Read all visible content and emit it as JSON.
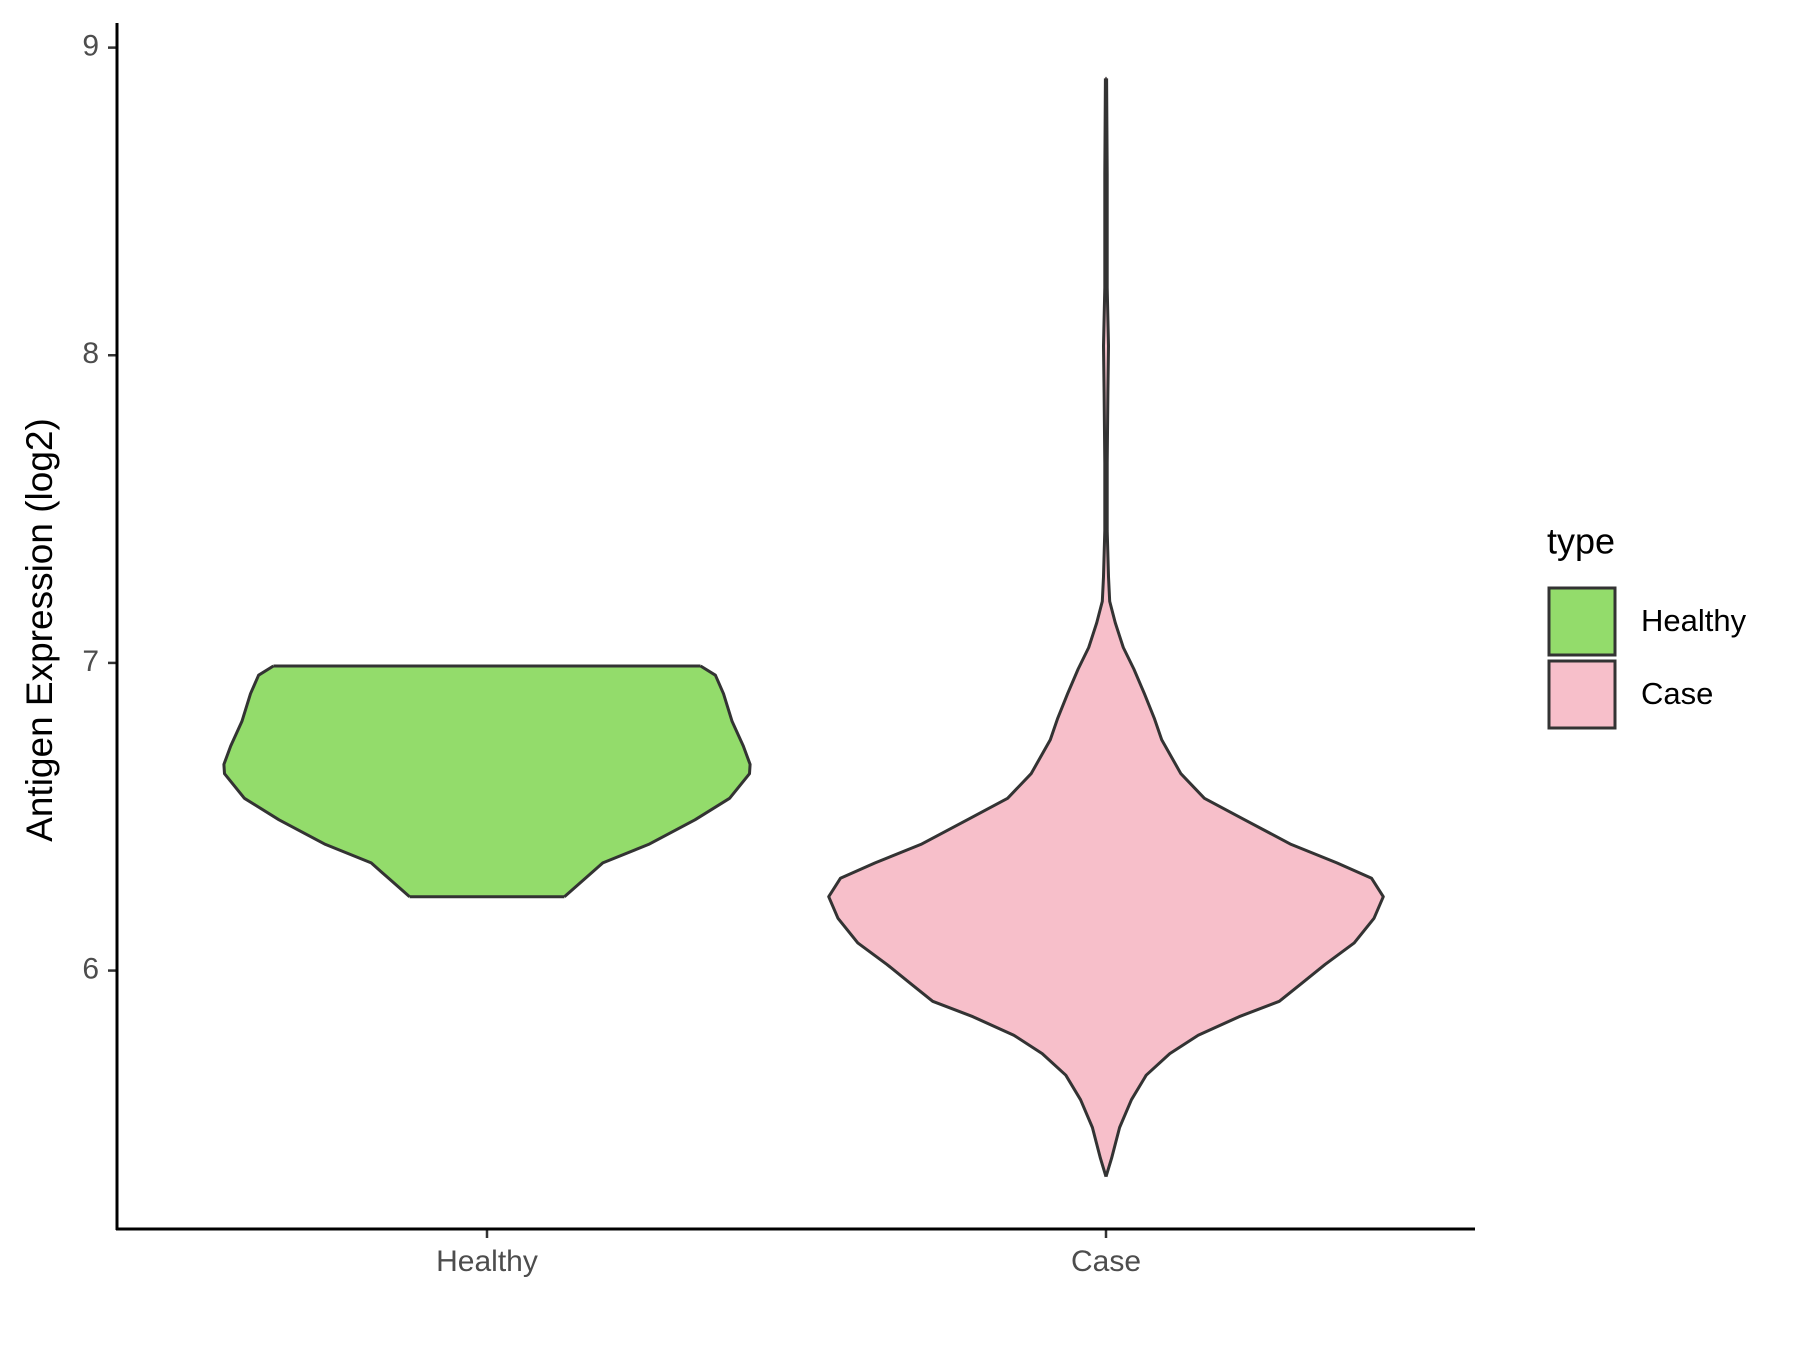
{
  "chart_data": {
    "type": "violin",
    "y_label": "Antigen Expression (log2)",
    "categories": [
      "Healthy",
      "Case"
    ],
    "legend_title": "type",
    "legend_position": "right",
    "ylim": [
      5.16,
      9.08
    ],
    "yticks": [
      6,
      7,
      8,
      9
    ],
    "series": [
      {
        "name": "Healthy",
        "color": "#93dc6b",
        "y": [
          6.24,
          6.3,
          6.35,
          6.41,
          6.49,
          6.56,
          6.64,
          6.67,
          6.73,
          6.81,
          6.9,
          6.96,
          6.99
        ],
        "width": [
          0.125,
          0.159,
          0.187,
          0.261,
          0.336,
          0.392,
          0.424,
          0.425,
          0.414,
          0.396,
          0.382,
          0.369,
          0.345
        ]
      },
      {
        "name": "Case",
        "color": "#f7bfca",
        "y": [
          5.33,
          5.39,
          5.49,
          5.58,
          5.66,
          5.73,
          5.79,
          5.85,
          5.9,
          5.96,
          6.02,
          6.09,
          6.17,
          6.24,
          6.3,
          6.35,
          6.41,
          6.49,
          6.56,
          6.64,
          6.75,
          6.82,
          6.9,
          6.98,
          7.05,
          7.13,
          7.2,
          7.28,
          7.43,
          7.65,
          7.88,
          8.03,
          8.22,
          8.59,
          8.9
        ],
        "width": [
          0,
          0.009,
          0.022,
          0.041,
          0.065,
          0.103,
          0.149,
          0.215,
          0.28,
          0.317,
          0.354,
          0.401,
          0.433,
          0.448,
          0.429,
          0.373,
          0.299,
          0.224,
          0.159,
          0.121,
          0.09,
          0.078,
          0.062,
          0.045,
          0.028,
          0.015,
          0.006,
          0.004,
          0.002,
          0.002,
          0.003,
          0.004,
          0.002,
          0.002,
          0.001
        ]
      }
    ]
  }
}
